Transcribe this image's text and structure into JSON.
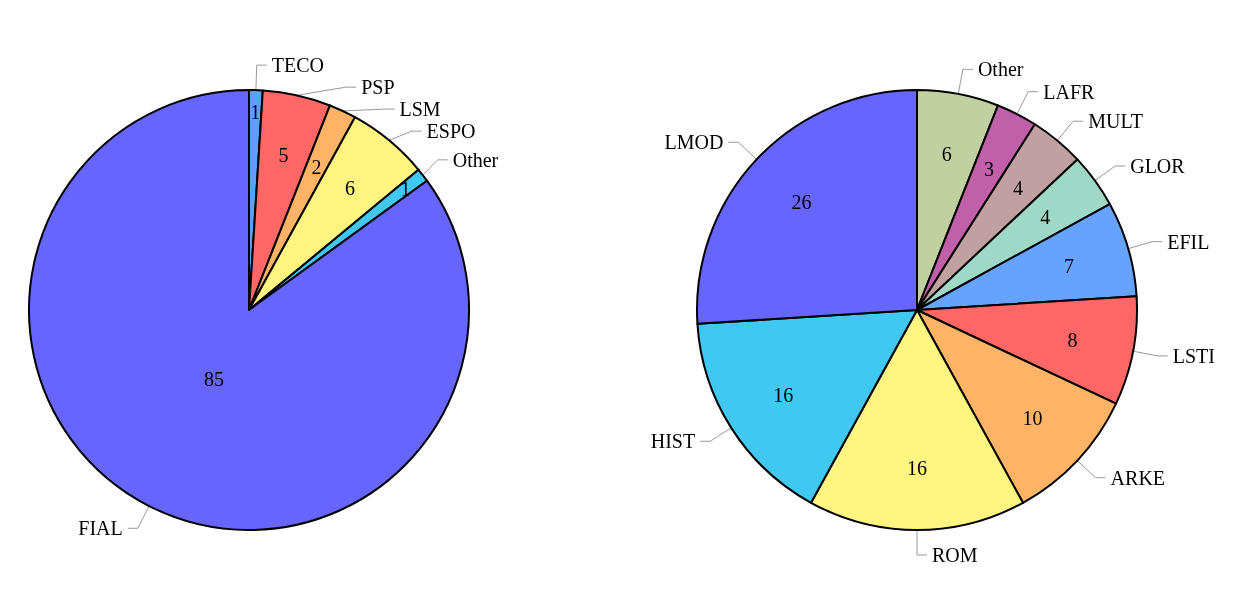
{
  "chart_data": [
    {
      "type": "pie",
      "categories": [
        "TECO",
        "PSP",
        "LSM",
        "ESPO",
        "Other",
        "FIAL"
      ],
      "values": [
        1,
        5,
        2,
        6,
        1,
        85
      ],
      "colors": [
        "#5aa0f5",
        "#ff6666",
        "#ffb366",
        "#fff580",
        "#40c8f0",
        "#6666ff"
      ],
      "data_labels": true
    },
    {
      "type": "pie",
      "categories": [
        "Other",
        "LAFR",
        "MULT",
        "GLOR",
        "EFIL",
        "LSTI",
        "ARKE",
        "ROM",
        "HIST",
        "LMOD"
      ],
      "values": [
        6,
        3,
        4,
        4,
        7,
        8,
        10,
        16,
        16,
        26
      ],
      "colors": [
        "#c0d0a0",
        "#c060a8",
        "#c0a0a0",
        "#a0d8c8",
        "#66a3ff",
        "#ff6666",
        "#ffb366",
        "#fff580",
        "#40c8f0",
        "#6666ff"
      ],
      "data_labels": true
    }
  ]
}
